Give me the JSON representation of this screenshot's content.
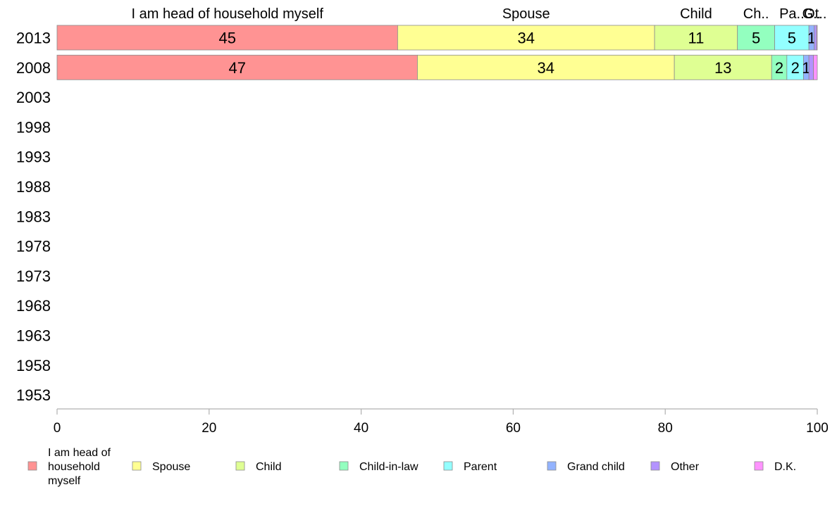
{
  "chart_data": {
    "type": "bar",
    "orientation": "horizontal",
    "stacked": true,
    "categories": [
      "2013",
      "2008",
      "2003",
      "1998",
      "1993",
      "1988",
      "1983",
      "1978",
      "1973",
      "1968",
      "1963",
      "1958",
      "1953"
    ],
    "series": [
      {
        "name": "I am head of household myself",
        "color": "#ff9393",
        "top_label": "I am head of household myself",
        "legend_lines": [
          "I am head of",
          "household",
          "myself"
        ],
        "values": [
          44.8,
          47.4,
          null,
          null,
          null,
          null,
          null,
          null,
          null,
          null,
          null,
          null,
          null
        ],
        "labels": [
          "45",
          "47",
          "",
          "",
          "",
          "",
          "",
          "",
          "",
          "",
          "",
          "",
          ""
        ]
      },
      {
        "name": "Spouse",
        "color": "#ffff93",
        "top_label": "Spouse",
        "legend_lines": [
          "Spouse"
        ],
        "values": [
          33.8,
          33.8,
          null,
          null,
          null,
          null,
          null,
          null,
          null,
          null,
          null,
          null,
          null
        ],
        "labels": [
          "34",
          "34",
          "",
          "",
          "",
          "",
          "",
          "",
          "",
          "",
          "",
          "",
          ""
        ]
      },
      {
        "name": "Child",
        "color": "#dfff93",
        "top_label": "Child",
        "legend_lines": [
          "Child"
        ],
        "values": [
          10.9,
          12.8,
          null,
          null,
          null,
          null,
          null,
          null,
          null,
          null,
          null,
          null,
          null
        ],
        "labels": [
          "11",
          "13",
          "",
          "",
          "",
          "",
          "",
          "",
          "",
          "",
          "",
          "",
          ""
        ]
      },
      {
        "name": "Child-in-law",
        "color": "#93ffbf",
        "top_label": "Ch..",
        "legend_lines": [
          "Child-in-law"
        ],
        "values": [
          4.9,
          2.0,
          null,
          null,
          null,
          null,
          null,
          null,
          null,
          null,
          null,
          null,
          null
        ],
        "labels": [
          "5",
          "2",
          "",
          "",
          "",
          "",
          "",
          "",
          "",
          "",
          "",
          "",
          ""
        ]
      },
      {
        "name": "Parent",
        "color": "#93ffff",
        "top_label": "Pa..",
        "legend_lines": [
          "Parent"
        ],
        "values": [
          4.5,
          2.2,
          null,
          null,
          null,
          null,
          null,
          null,
          null,
          null,
          null,
          null,
          null
        ],
        "labels": [
          "5",
          "2",
          "",
          "",
          "",
          "",
          "",
          "",
          "",
          "",
          "",
          "",
          ""
        ]
      },
      {
        "name": "Grand child",
        "color": "#93b3ff",
        "top_label": "G..",
        "legend_lines": [
          "Grand child"
        ],
        "values": [
          0.7,
          0.7,
          null,
          null,
          null,
          null,
          null,
          null,
          null,
          null,
          null,
          null,
          null
        ],
        "labels": [
          "1",
          "1",
          "",
          "",
          "",
          "",
          "",
          "",
          "",
          "",
          "",
          "",
          ""
        ]
      },
      {
        "name": "Other",
        "color": "#b393ff",
        "top_label": "Ot..",
        "legend_lines": [
          "Other"
        ],
        "values": [
          0.3,
          0.6,
          null,
          null,
          null,
          null,
          null,
          null,
          null,
          null,
          null,
          null,
          null
        ],
        "labels": [
          "",
          "",
          "",
          "",
          "",
          "",
          "",
          "",
          "",
          "",
          "",
          "",
          ""
        ]
      },
      {
        "name": "D.K.",
        "color": "#ff93ff",
        "top_label": "",
        "legend_lines": [
          "D.K."
        ],
        "values": [
          0.1,
          0.5,
          null,
          null,
          null,
          null,
          null,
          null,
          null,
          null,
          null,
          null,
          null
        ],
        "labels": [
          "",
          "",
          "",
          "",
          "",
          "",
          "",
          "",
          "",
          "",
          "",
          "",
          ""
        ]
      }
    ],
    "xlim": [
      0,
      100
    ],
    "xticks": [
      0,
      20,
      40,
      60,
      80,
      100
    ],
    "grid": false,
    "legend_position": "bottom"
  }
}
